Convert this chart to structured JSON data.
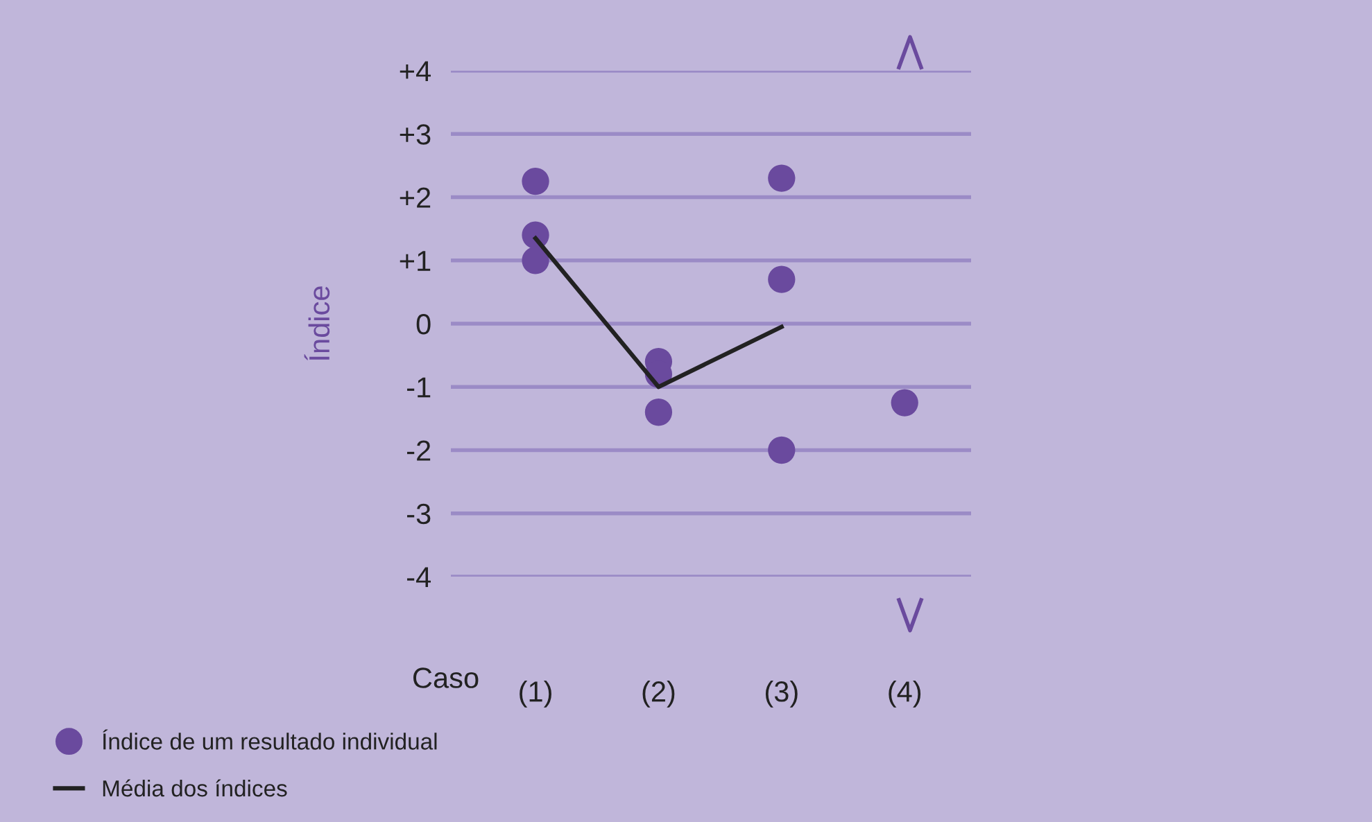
{
  "chart_data": {
    "type": "scatter",
    "ylabel": "Índice",
    "xlabel": "Caso",
    "categories": [
      "(1)",
      "(2)",
      "(3)",
      "(4)"
    ],
    "series": [
      {
        "name": "Índice de um resultado individual",
        "color": "#6a4a9e",
        "marker": "circle",
        "x": [
          "(1)",
          "(1)",
          "(1)",
          "(2)",
          "(2)",
          "(2)",
          "(3)",
          "(3)",
          "(3)",
          "(4)"
        ],
        "values": [
          2.25,
          1.4,
          1.0,
          -0.6,
          -0.8,
          -1.4,
          2.3,
          0.7,
          -2.0,
          -1.25
        ]
      },
      {
        "name": "Média dos índices",
        "type": "line",
        "color": "#222222",
        "marker": "none",
        "line_style": "solid",
        "values": [
          1.35,
          -1.0,
          -0.05,
          null
        ]
      }
    ],
    "ylim": [
      -4,
      4
    ],
    "yticks": [
      {
        "value": 4,
        "label": "+4"
      },
      {
        "value": 3,
        "label": "+3"
      },
      {
        "value": 2,
        "label": "+2"
      },
      {
        "value": 1,
        "label": "+1"
      },
      0,
      {
        "value": -1,
        "label": "-1"
      },
      {
        "value": -2,
        "label": "-2"
      },
      {
        "value": -3,
        "label": "-3"
      },
      {
        "value": -4,
        "label": "-4"
      }
    ],
    "grid": "y",
    "legend": "bottom left"
  }
}
